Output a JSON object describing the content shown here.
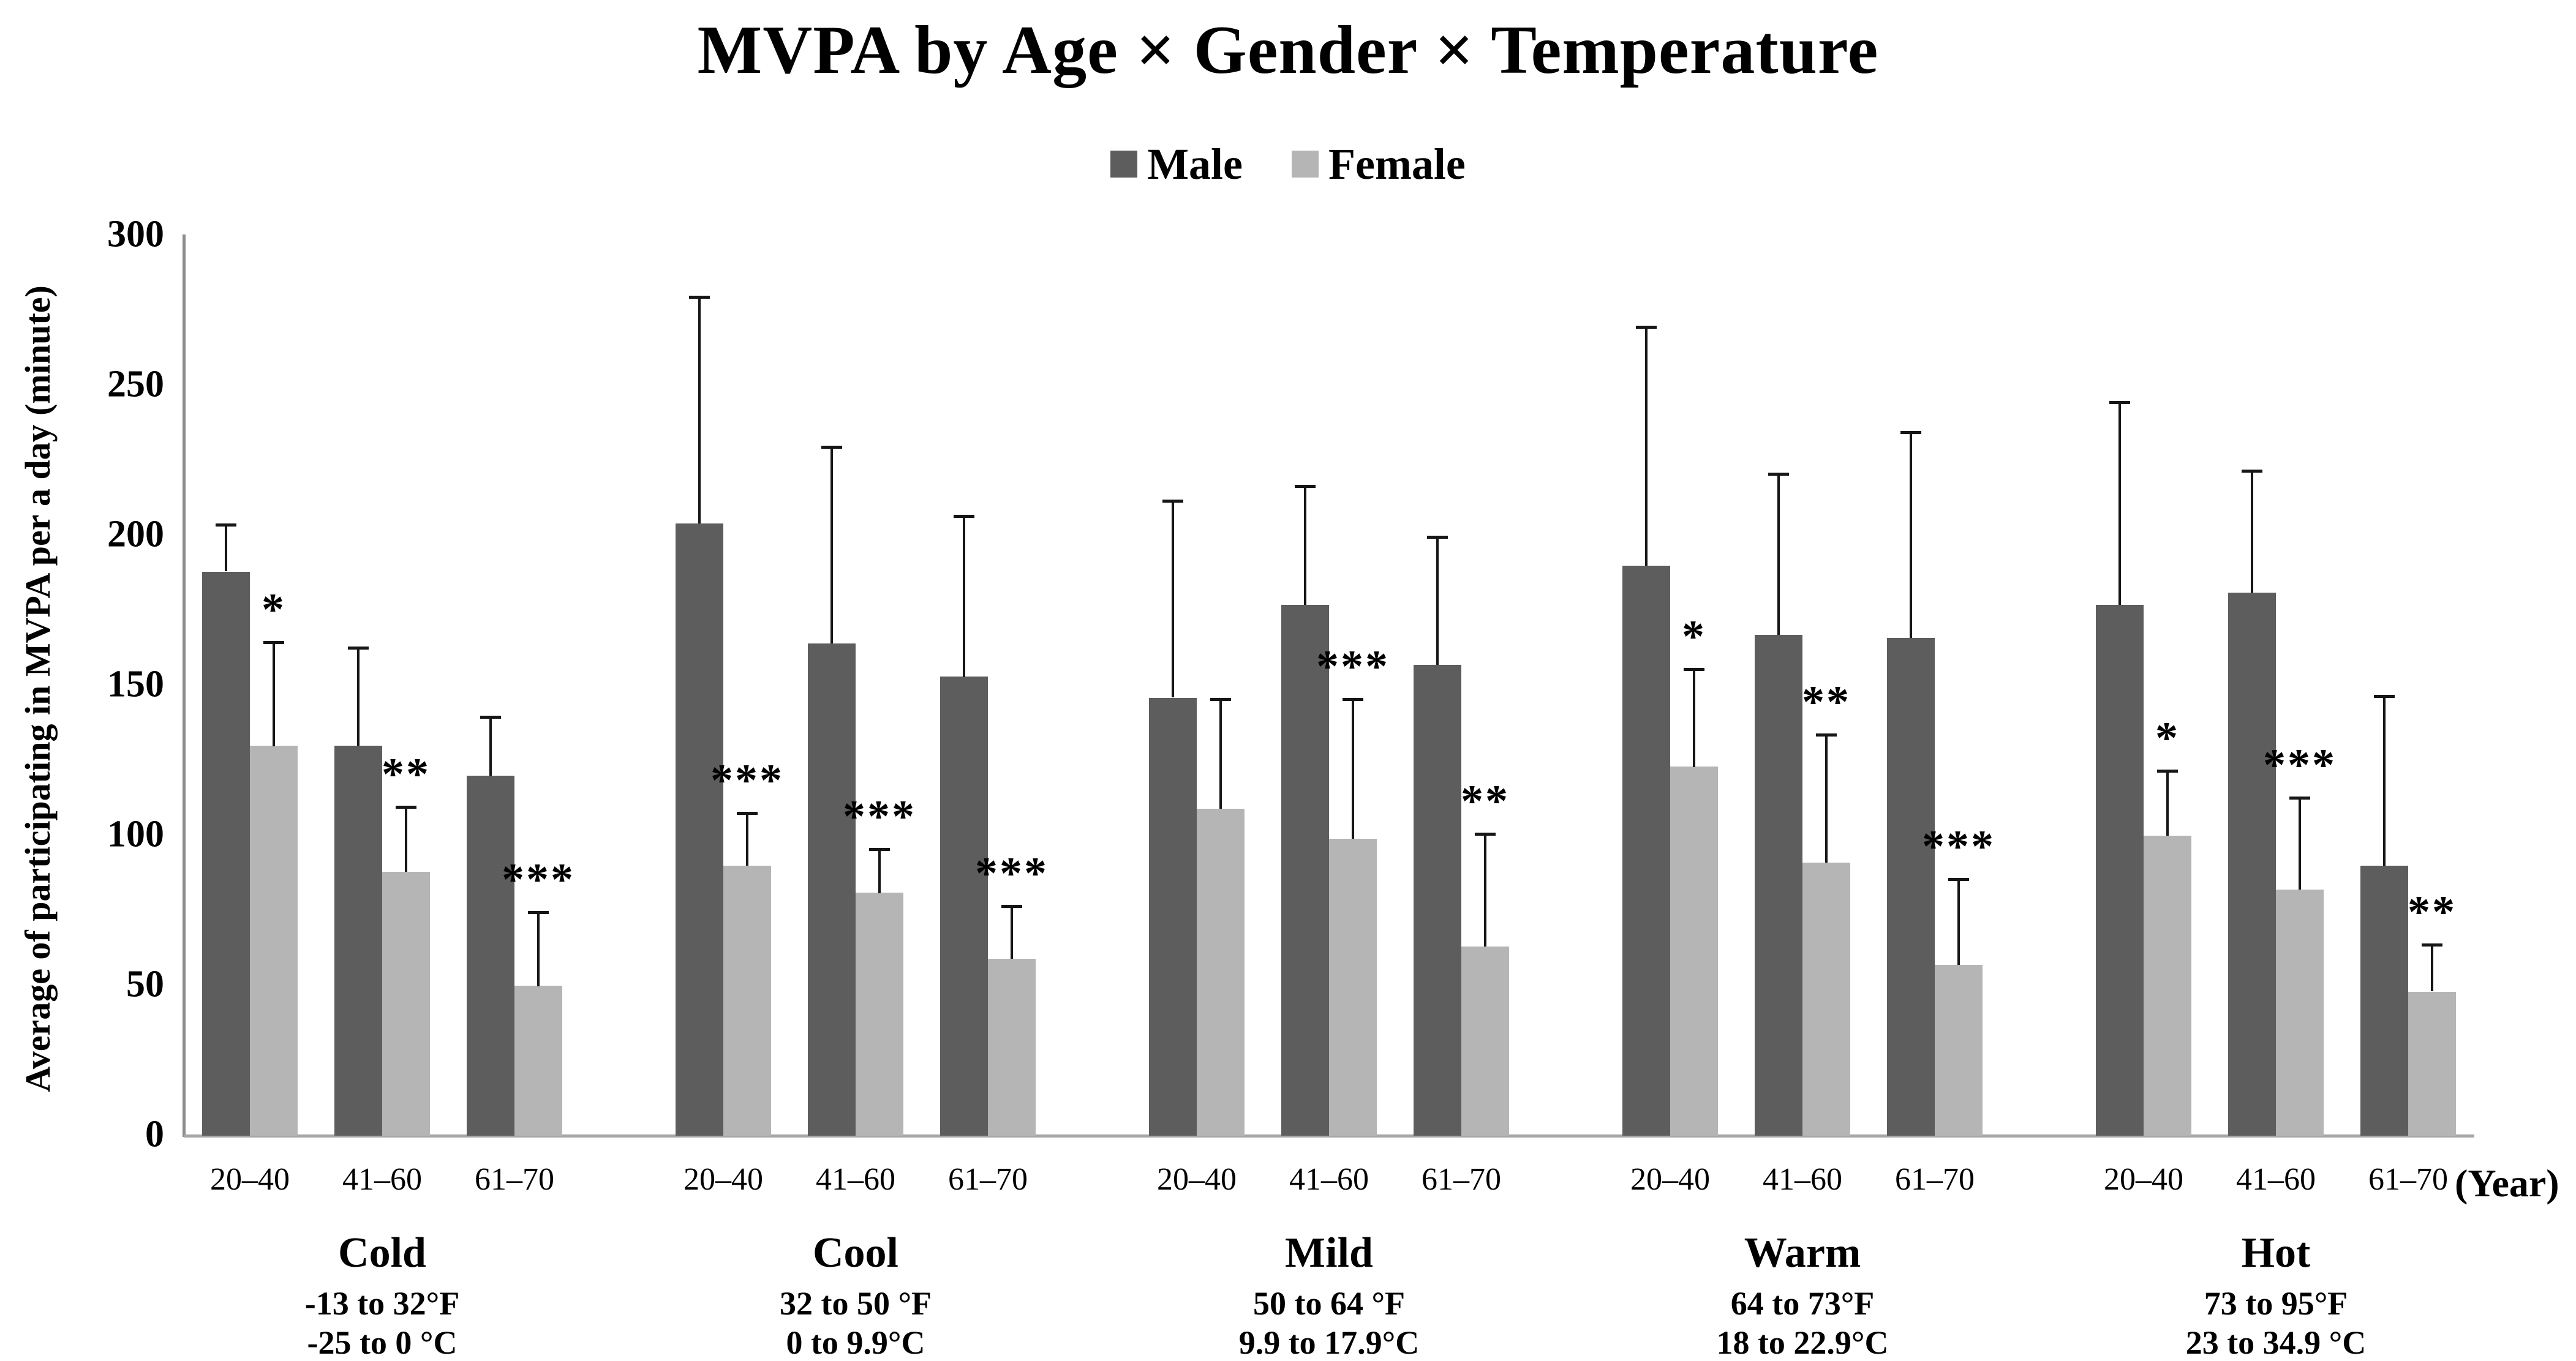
{
  "chart_data": {
    "type": "bar",
    "title": "MVPA by Age × Gender × Temperature",
    "ylabel": "Average of participating in MVPA per a day (minute)",
    "xlabel": "(Year)",
    "x_unit_label": "(Year)",
    "ylim": [
      0,
      300
    ],
    "yticks": [
      0,
      50,
      100,
      150,
      200,
      250,
      300
    ],
    "grid": "off",
    "legend_position": "top-center",
    "error_bars": "upper-only",
    "age_categories": [
      "20–40",
      "41–60",
      "61–70"
    ],
    "series": [
      {
        "name": "Male",
        "color": "#5d5d5d"
      },
      {
        "name": "Female",
        "color": "#b5b5b5"
      }
    ],
    "significance_note_symbols": [
      "*",
      "**",
      "***"
    ],
    "groups": [
      {
        "name": "Cold",
        "range_f": "-13 to 32°F",
        "range_c": "-25 to 0 °C",
        "male": {
          "values": [
            188,
            130,
            120
          ],
          "err_top": [
            204,
            163,
            140
          ],
          "sig": [
            "",
            "",
            ""
          ]
        },
        "female": {
          "values": [
            130,
            88,
            50
          ],
          "err_top": [
            165,
            110,
            75
          ],
          "sig": [
            "*",
            "**",
            "***"
          ]
        }
      },
      {
        "name": "Cool",
        "range_f": "32 to 50 °F",
        "range_c": "0 to 9.9°C",
        "male": {
          "values": [
            204,
            164,
            153
          ],
          "err_top": [
            280,
            230,
            207
          ],
          "sig": [
            "",
            "",
            ""
          ]
        },
        "female": {
          "values": [
            90,
            81,
            59
          ],
          "err_top": [
            108,
            96,
            77
          ],
          "sig": [
            "***",
            "***",
            "***"
          ]
        }
      },
      {
        "name": "Mild",
        "range_f": "50 to 64 °F",
        "range_c": "9.9 to 17.9°C",
        "male": {
          "values": [
            146,
            177,
            157
          ],
          "err_top": [
            212,
            217,
            200
          ],
          "sig": [
            "",
            "",
            ""
          ]
        },
        "female": {
          "values": [
            109,
            99,
            63
          ],
          "err_top": [
            146,
            146,
            101
          ],
          "sig": [
            "",
            "***",
            "**"
          ]
        }
      },
      {
        "name": "Warm",
        "range_f": "64 to 73°F",
        "range_c": "18 to 22.9°C",
        "male": {
          "values": [
            190,
            167,
            166
          ],
          "err_top": [
            270,
            221,
            235
          ],
          "sig": [
            "",
            "",
            ""
          ]
        },
        "female": {
          "values": [
            123,
            91,
            57
          ],
          "err_top": [
            156,
            134,
            86
          ],
          "sig": [
            "*",
            "**",
            "***"
          ]
        }
      },
      {
        "name": "Hot",
        "range_f": "73 to 95°F",
        "range_c": "23 to 34.9 °C",
        "male": {
          "values": [
            177,
            181,
            90
          ],
          "err_top": [
            245,
            222,
            147
          ],
          "sig": [
            "",
            "",
            ""
          ]
        },
        "female": {
          "values": [
            100,
            82,
            48
          ],
          "err_top": [
            122,
            113,
            64
          ],
          "sig": [
            "*",
            "***",
            "**"
          ]
        }
      }
    ],
    "colors": {
      "male_bar": "#5d5d5d",
      "female_bar": "#b5b5b5",
      "error_bar": "#161616",
      "y_axis_line": "#8c8c8c",
      "baseline": "#a6a6a6",
      "text": "#000000",
      "background": "#ffffff"
    }
  }
}
